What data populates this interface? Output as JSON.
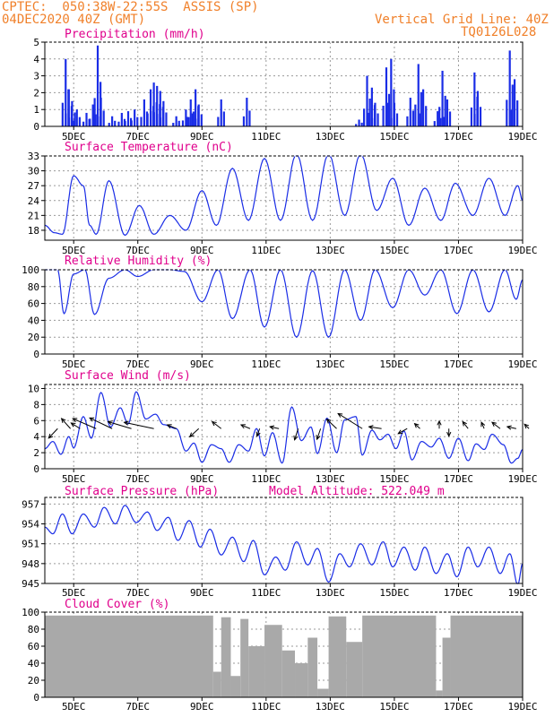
{
  "header": {
    "line1": "CPTEC:  050:38W-22:55S  ASSIS (SP)",
    "line2": "04DEC2020 40Z (GMT)",
    "right1": "Vertical Grid Line: 40Z",
    "right2": "TQ0126L028"
  },
  "colors": {
    "line": "#1a2de6",
    "bars": "#1a2de6",
    "cloud": "#a9a9a9",
    "title": "#e0008c",
    "header": "#f0802a"
  },
  "chart_data": [
    {
      "type": "bar",
      "title": "Precipitation (mm/h)",
      "ylim": [
        0,
        5
      ],
      "yticks": [
        "0",
        "1",
        "2",
        "3",
        "4",
        "5"
      ],
      "xticks": [
        "5DEC",
        "7DEC",
        "9DEC",
        "11DEC",
        "13DEC",
        "15DEC",
        "17DEC",
        "19DEC"
      ],
      "x_unit": "day of December 2020",
      "xlim": [
        4.1,
        19.0
      ],
      "events": [
        {
          "x": 4.75,
          "y": 4.0
        },
        {
          "x": 4.85,
          "y": 2.2
        },
        {
          "x": 4.95,
          "y": 1.5
        },
        {
          "x": 5.1,
          "y": 1.0
        },
        {
          "x": 5.4,
          "y": 0.8
        },
        {
          "x": 5.6,
          "y": 1.3
        },
        {
          "x": 5.75,
          "y": 4.8
        },
        {
          "x": 5.85,
          "y": 1.7
        },
        {
          "x": 6.2,
          "y": 0.6
        },
        {
          "x": 6.5,
          "y": 0.8
        },
        {
          "x": 6.7,
          "y": 0.9
        },
        {
          "x": 6.9,
          "y": 1.0
        },
        {
          "x": 7.2,
          "y": 1.6
        },
        {
          "x": 7.4,
          "y": 2.2
        },
        {
          "x": 7.5,
          "y": 2.6
        },
        {
          "x": 7.6,
          "y": 2.4
        },
        {
          "x": 7.7,
          "y": 2.1
        },
        {
          "x": 7.8,
          "y": 1.5
        },
        {
          "x": 8.2,
          "y": 0.6
        },
        {
          "x": 8.5,
          "y": 1.0
        },
        {
          "x": 8.65,
          "y": 1.6
        },
        {
          "x": 8.8,
          "y": 2.2
        },
        {
          "x": 8.9,
          "y": 1.3
        },
        {
          "x": 9.6,
          "y": 1.6
        },
        {
          "x": 10.4,
          "y": 1.7
        },
        {
          "x": 13.9,
          "y": 0.4
        },
        {
          "x": 14.15,
          "y": 3.0
        },
        {
          "x": 14.3,
          "y": 2.3
        },
        {
          "x": 14.4,
          "y": 1.4
        },
        {
          "x": 14.75,
          "y": 3.5
        },
        {
          "x": 14.9,
          "y": 4.0
        },
        {
          "x": 15.0,
          "y": 1.4
        },
        {
          "x": 15.5,
          "y": 1.7
        },
        {
          "x": 15.75,
          "y": 3.7
        },
        {
          "x": 15.9,
          "y": 2.2
        },
        {
          "x": 16.35,
          "y": 0.9
        },
        {
          "x": 16.5,
          "y": 3.3
        },
        {
          "x": 16.65,
          "y": 1.6
        },
        {
          "x": 17.5,
          "y": 3.2
        },
        {
          "x": 17.6,
          "y": 2.1
        },
        {
          "x": 18.6,
          "y": 4.5
        },
        {
          "x": 18.75,
          "y": 2.8
        }
      ]
    },
    {
      "type": "line",
      "title": "Surface Temperature (nC)",
      "ylim": [
        16,
        33
      ],
      "yticks": [
        "18",
        "21",
        "24",
        "27",
        "30",
        "33"
      ],
      "xticks": [
        "5DEC",
        "7DEC",
        "9DEC",
        "11DEC",
        "13DEC",
        "15DEC",
        "17DEC",
        "19DEC"
      ],
      "x_unit": "day of December 2020",
      "xlim": [
        4.1,
        19.0
      ],
      "extrema": [
        [
          4.1,
          19
        ],
        [
          4.4,
          17.5
        ],
        [
          4.65,
          17.2
        ],
        [
          5.0,
          29
        ],
        [
          5.3,
          27
        ],
        [
          5.5,
          19
        ],
        [
          5.7,
          17.2
        ],
        [
          6.1,
          28
        ],
        [
          6.6,
          17
        ],
        [
          7.05,
          23
        ],
        [
          7.5,
          17.2
        ],
        [
          8.0,
          21
        ],
        [
          8.5,
          18
        ],
        [
          9.0,
          26
        ],
        [
          9.45,
          19
        ],
        [
          9.95,
          30.5
        ],
        [
          10.45,
          20
        ],
        [
          10.95,
          32.5
        ],
        [
          11.45,
          20
        ],
        [
          11.95,
          33.5
        ],
        [
          12.45,
          20
        ],
        [
          12.95,
          33.5
        ],
        [
          13.45,
          21
        ],
        [
          13.95,
          33.5
        ],
        [
          14.45,
          22
        ],
        [
          14.95,
          28.5
        ],
        [
          15.45,
          19
        ],
        [
          15.95,
          26.5
        ],
        [
          16.45,
          20
        ],
        [
          16.9,
          27.5
        ],
        [
          17.45,
          21
        ],
        [
          17.95,
          28.5
        ],
        [
          18.45,
          21
        ],
        [
          18.85,
          27
        ],
        [
          19.0,
          24
        ]
      ]
    },
    {
      "type": "line",
      "title": "Relative Humidity (%)",
      "ylim": [
        0,
        100
      ],
      "yticks": [
        "0",
        "20",
        "40",
        "60",
        "80",
        "100"
      ],
      "xticks": [
        "5DEC",
        "7DEC",
        "9DEC",
        "11DEC",
        "13DEC",
        "15DEC",
        "17DEC",
        "19DEC"
      ],
      "x_unit": "day of December 2020",
      "xlim": [
        4.1,
        19.0
      ],
      "extrema": [
        [
          4.1,
          100
        ],
        [
          4.5,
          100
        ],
        [
          4.7,
          48
        ],
        [
          5.0,
          95
        ],
        [
          5.35,
          100
        ],
        [
          5.65,
          47
        ],
        [
          6.1,
          90
        ],
        [
          6.6,
          100
        ],
        [
          7.0,
          92
        ],
        [
          7.5,
          100
        ],
        [
          8.0,
          100
        ],
        [
          8.45,
          98
        ],
        [
          9.0,
          62
        ],
        [
          9.5,
          100
        ],
        [
          9.95,
          42
        ],
        [
          10.5,
          100
        ],
        [
          10.95,
          32
        ],
        [
          11.45,
          100
        ],
        [
          11.95,
          20
        ],
        [
          12.45,
          99
        ],
        [
          12.95,
          20
        ],
        [
          13.45,
          100
        ],
        [
          13.95,
          40
        ],
        [
          14.4,
          100
        ],
        [
          14.95,
          55
        ],
        [
          15.45,
          100
        ],
        [
          15.95,
          70
        ],
        [
          16.45,
          100
        ],
        [
          16.95,
          48
        ],
        [
          17.45,
          100
        ],
        [
          17.95,
          50
        ],
        [
          18.45,
          100
        ],
        [
          18.8,
          65
        ],
        [
          19.0,
          88
        ]
      ]
    },
    {
      "type": "line",
      "title": "Surface Wind (m/s)",
      "ylim": [
        0,
        10.5
      ],
      "yticks": [
        "0",
        "2",
        "4",
        "6",
        "8",
        "10"
      ],
      "xticks": [
        "5DEC",
        "7DEC",
        "9DEC",
        "11DEC",
        "13DEC",
        "15DEC",
        "17DEC",
        "19DEC"
      ],
      "x_unit": "day of December 2020",
      "xlim": [
        4.1,
        19.0
      ],
      "extrema": [
        [
          4.1,
          2.5
        ],
        [
          4.35,
          3.4
        ],
        [
          4.6,
          1.8
        ],
        [
          4.85,
          4.0
        ],
        [
          5.0,
          2.6
        ],
        [
          5.3,
          6.5
        ],
        [
          5.55,
          3.8
        ],
        [
          5.85,
          9.5
        ],
        [
          6.15,
          5.2
        ],
        [
          6.45,
          7.6
        ],
        [
          6.7,
          5.6
        ],
        [
          6.95,
          9.6
        ],
        [
          7.25,
          6.2
        ],
        [
          7.55,
          6.8
        ],
        [
          7.8,
          5.5
        ],
        [
          8.2,
          5.0
        ],
        [
          8.5,
          2.2
        ],
        [
          8.75,
          3.2
        ],
        [
          9.0,
          0.8
        ],
        [
          9.3,
          3.0
        ],
        [
          9.6,
          2.5
        ],
        [
          9.85,
          0.8
        ],
        [
          10.15,
          3.0
        ],
        [
          10.45,
          2.2
        ],
        [
          10.7,
          5.0
        ],
        [
          10.95,
          1.6
        ],
        [
          11.2,
          4.5
        ],
        [
          11.5,
          0.7
        ],
        [
          11.8,
          7.7
        ],
        [
          12.1,
          3.5
        ],
        [
          12.4,
          5.2
        ],
        [
          12.6,
          1.9
        ],
        [
          12.9,
          6.3
        ],
        [
          13.2,
          2.0
        ],
        [
          13.45,
          6.1
        ],
        [
          13.8,
          6.5
        ],
        [
          14.0,
          1.7
        ],
        [
          14.3,
          4.8
        ],
        [
          14.55,
          3.6
        ],
        [
          14.8,
          4.3
        ],
        [
          15.05,
          2.5
        ],
        [
          15.3,
          4.7
        ],
        [
          15.55,
          1.1
        ],
        [
          15.85,
          3.4
        ],
        [
          16.15,
          2.7
        ],
        [
          16.4,
          3.8
        ],
        [
          16.7,
          1.3
        ],
        [
          17.0,
          3.8
        ],
        [
          17.3,
          1.0
        ],
        [
          17.55,
          3.1
        ],
        [
          17.8,
          2.4
        ],
        [
          18.05,
          4.3
        ],
        [
          18.4,
          3.0
        ],
        [
          18.65,
          0.7
        ],
        [
          18.85,
          1.3
        ],
        [
          19.0,
          2.4
        ]
      ],
      "vectors": [
        {
          "x": 4.5,
          "u": -1,
          "v": -1.5
        },
        {
          "x": 4.9,
          "u": -1,
          "v": 1.6
        },
        {
          "x": 5.2,
          "u": -1,
          "v": 0.9
        },
        {
          "x": 5.7,
          "u": -2.6,
          "v": 1.6
        },
        {
          "x": 6.2,
          "u": -2.5,
          "v": 1.7
        },
        {
          "x": 6.8,
          "u": -2.6,
          "v": 1.1
        },
        {
          "x": 7.5,
          "u": -3.3,
          "v": 1.0
        },
        {
          "x": 8.2,
          "u": -1,
          "v": 0.6
        },
        {
          "x": 8.9,
          "u": -1,
          "v": -1.3
        },
        {
          "x": 9.6,
          "u": -1,
          "v": 1.1
        },
        {
          "x": 10.5,
          "u": -1,
          "v": 0.6
        },
        {
          "x": 10.8,
          "u": -0.3,
          "v": -1.2
        },
        {
          "x": 11.4,
          "u": -1,
          "v": 0.3
        },
        {
          "x": 12.0,
          "u": -0.4,
          "v": -1.8
        },
        {
          "x": 12.7,
          "u": -0.4,
          "v": -1.7
        },
        {
          "x": 13.2,
          "u": -1.1,
          "v": 1.5
        },
        {
          "x": 14.0,
          "u": -2.7,
          "v": 2.4
        },
        {
          "x": 14.6,
          "u": -1.4,
          "v": 0.3
        },
        {
          "x": 15.4,
          "u": -1.0,
          "v": -0.8
        },
        {
          "x": 15.8,
          "u": -0.6,
          "v": 0.8
        },
        {
          "x": 16.4,
          "u": 0.0,
          "v": 1.2
        },
        {
          "x": 16.7,
          "u": 0.0,
          "v": -1.2
        },
        {
          "x": 17.3,
          "u": -0.6,
          "v": 1.1
        },
        {
          "x": 17.8,
          "u": -0.3,
          "v": 1.0
        },
        {
          "x": 18.3,
          "u": -0.9,
          "v": 1.0
        },
        {
          "x": 18.8,
          "u": -1.0,
          "v": 0.3
        },
        {
          "x": 19.2,
          "u": -0.5,
          "v": 0.7
        }
      ]
    },
    {
      "type": "line",
      "title": "Surface Pressure (hPa)",
      "subtitle": "Model Altitude: 522.049 m",
      "ylim": [
        945,
        958
      ],
      "yticks": [
        "945",
        "948",
        "951",
        "954",
        "957"
      ],
      "xticks": [
        "5DEC",
        "7DEC",
        "9DEC",
        "11DEC",
        "13DEC",
        "15DEC",
        "17DEC",
        "19DEC"
      ],
      "x_unit": "day of December 2020",
      "xlim": [
        4.1,
        19.0
      ],
      "extrema": [
        [
          4.1,
          953.5
        ],
        [
          4.35,
          952.5
        ],
        [
          4.65,
          955.5
        ],
        [
          4.95,
          952.5
        ],
        [
          5.3,
          955.5
        ],
        [
          5.65,
          953.5
        ],
        [
          5.95,
          956.5
        ],
        [
          6.3,
          954.0
        ],
        [
          6.6,
          956.8
        ],
        [
          6.95,
          954.2
        ],
        [
          7.3,
          955.8
        ],
        [
          7.6,
          953.0
        ],
        [
          7.95,
          955.0
        ],
        [
          8.25,
          951.5
        ],
        [
          8.6,
          954.5
        ],
        [
          8.95,
          950.5
        ],
        [
          9.25,
          953.2
        ],
        [
          9.6,
          949.3
        ],
        [
          9.95,
          952.0
        ],
        [
          10.3,
          948.3
        ],
        [
          10.6,
          951.5
        ],
        [
          10.95,
          946.3
        ],
        [
          11.3,
          949.0
        ],
        [
          11.6,
          947.0
        ],
        [
          11.95,
          951.3
        ],
        [
          12.3,
          947.8
        ],
        [
          12.6,
          950.3
        ],
        [
          12.95,
          945.2
        ],
        [
          13.3,
          949.5
        ],
        [
          13.6,
          947.5
        ],
        [
          13.95,
          951.0
        ],
        [
          14.3,
          947.8
        ],
        [
          14.65,
          951.3
        ],
        [
          14.95,
          947.5
        ],
        [
          15.3,
          950.5
        ],
        [
          15.65,
          947.0
        ],
        [
          15.95,
          950.5
        ],
        [
          16.3,
          946.5
        ],
        [
          16.65,
          949.5
        ],
        [
          16.95,
          946.0
        ],
        [
          17.3,
          950.5
        ],
        [
          17.6,
          947.5
        ],
        [
          17.95,
          950.5
        ],
        [
          18.3,
          946.5
        ],
        [
          18.6,
          949.5
        ],
        [
          18.85,
          944.8
        ],
        [
          19.0,
          948.0
        ]
      ]
    },
    {
      "type": "bar",
      "title": "Cloud Cover (%)",
      "ylim": [
        0,
        100
      ],
      "yticks": [
        "0",
        "20",
        "40",
        "60",
        "80",
        "100"
      ],
      "xticks": [
        "5DEC",
        "7DEC",
        "9DEC",
        "11DEC",
        "13DEC",
        "15DEC",
        "17DEC",
        "19DEC"
      ],
      "x_unit": "day of December 2020",
      "xlim": [
        4.1,
        19.0
      ],
      "segments": [
        {
          "x0": 4.1,
          "x1": 9.35,
          "v": 96
        },
        {
          "x0": 9.35,
          "x1": 9.6,
          "v": 30
        },
        {
          "x0": 9.6,
          "x1": 9.9,
          "v": 94
        },
        {
          "x0": 9.9,
          "x1": 10.2,
          "v": 25
        },
        {
          "x0": 10.2,
          "x1": 10.45,
          "v": 92
        },
        {
          "x0": 10.45,
          "x1": 10.95,
          "v": 60
        },
        {
          "x0": 10.95,
          "x1": 11.5,
          "v": 85
        },
        {
          "x0": 11.5,
          "x1": 11.9,
          "v": 55
        },
        {
          "x0": 11.9,
          "x1": 12.3,
          "v": 40
        },
        {
          "x0": 12.3,
          "x1": 12.6,
          "v": 70
        },
        {
          "x0": 12.6,
          "x1": 12.95,
          "v": 10
        },
        {
          "x0": 12.95,
          "x1": 13.5,
          "v": 95
        },
        {
          "x0": 13.5,
          "x1": 14.0,
          "v": 65
        },
        {
          "x0": 14.0,
          "x1": 16.3,
          "v": 96
        },
        {
          "x0": 16.3,
          "x1": 16.5,
          "v": 8
        },
        {
          "x0": 16.5,
          "x1": 16.75,
          "v": 70
        },
        {
          "x0": 16.75,
          "x1": 19.0,
          "v": 96
        }
      ]
    }
  ]
}
